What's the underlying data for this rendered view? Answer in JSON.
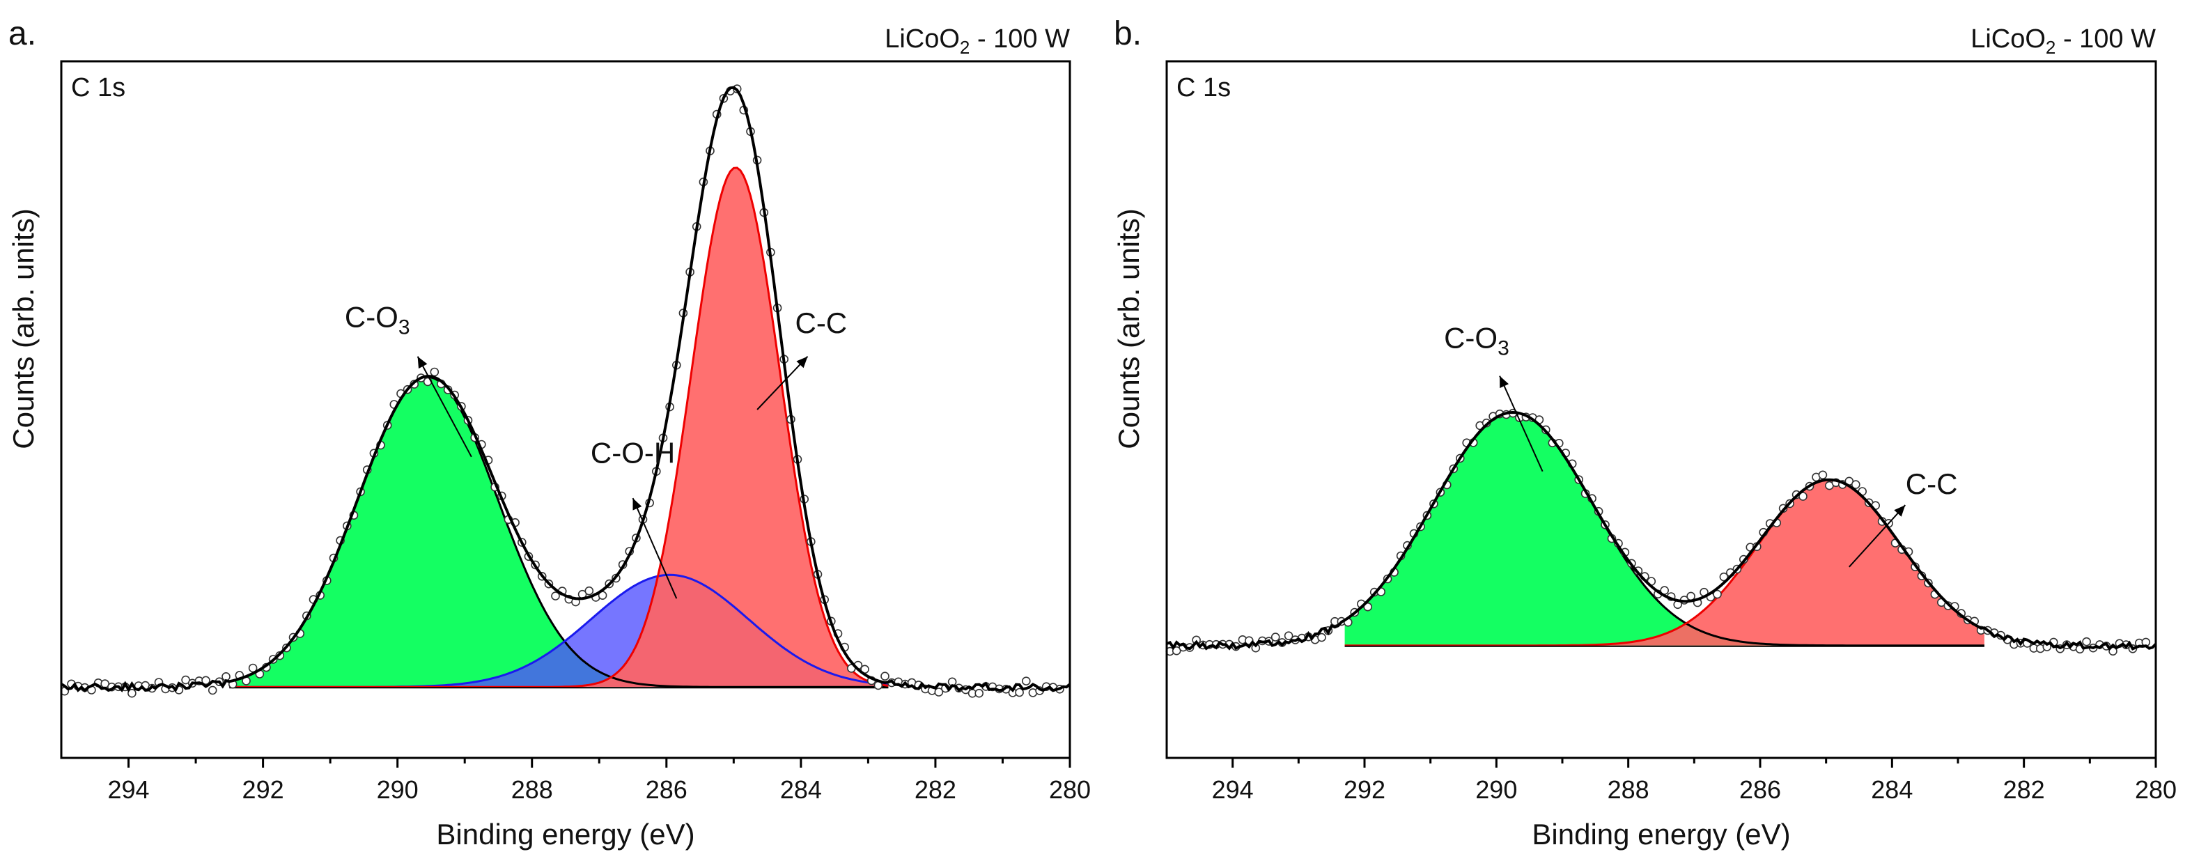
{
  "chart_data": [
    {
      "type": "line",
      "panel_label": "a.",
      "sample_label_parts": [
        "LiCoO",
        "2",
        " - 100 W"
      ],
      "region": "C 1s",
      "xlabel": "Binding energy (eV)",
      "ylabel": "Counts (arb. units)",
      "xlim": [
        295,
        280
      ],
      "x_reversed": true,
      "xticks": [
        294,
        292,
        290,
        288,
        286,
        284,
        282,
        280
      ],
      "ylim": [
        -0.12,
        1.06
      ],
      "baseline_level": 0.0,
      "measured_range": [
        295,
        280
      ],
      "fit_range": [
        292.5,
        282.7
      ],
      "components": [
        {
          "name": "C-O3",
          "label_parts": [
            "C-O",
            "3"
          ],
          "center": 289.55,
          "amplitude": 0.525,
          "fwhm": 2.45,
          "color": "#00ff55",
          "edge": "#000000",
          "label_at": [
            290.3,
            0.61
          ],
          "arrow_from": [
            288.9,
            0.39
          ],
          "arrow_to": [
            289.7,
            0.56
          ]
        },
        {
          "name": "C-O-H",
          "label_parts": [
            "C-O-H",
            ""
          ],
          "center": 285.95,
          "amplitude": 0.19,
          "fwhm": 2.75,
          "color": "#5050ff",
          "edge": "#1a1aee",
          "label_at": [
            286.5,
            0.38
          ],
          "arrow_from": [
            285.85,
            0.15
          ],
          "arrow_to": [
            286.5,
            0.32
          ]
        },
        {
          "name": "C-C",
          "label_parts": [
            "C-C",
            ""
          ],
          "center": 284.97,
          "amplitude": 0.88,
          "fwhm": 1.55,
          "color": "#ff6464",
          "edge": "#ee0000",
          "label_at": [
            283.7,
            0.6
          ],
          "arrow_from": [
            284.65,
            0.47
          ],
          "arrow_to": [
            283.9,
            0.56
          ]
        }
      ]
    },
    {
      "type": "line",
      "panel_label": "b.",
      "sample_label_parts": [
        "LiCoO",
        "2",
        " - 100 W"
      ],
      "region": "C 1s",
      "xlabel": "Binding energy (eV)",
      "ylabel": "Counts (arb. units)",
      "xlim": [
        295,
        280
      ],
      "x_reversed": true,
      "xticks": [
        294,
        292,
        290,
        288,
        286,
        284,
        282,
        280
      ],
      "ylim": [
        -0.18,
        1.06
      ],
      "baseline_level": 0.02,
      "measured_range": [
        295,
        280
      ],
      "fit_range": [
        292.3,
        282.6
      ],
      "components": [
        {
          "name": "C-O3",
          "label_parts": [
            "C-O",
            "3"
          ],
          "center": 289.75,
          "amplitude": 0.415,
          "fwhm": 2.85,
          "color": "#00ff55",
          "edge": "#000000",
          "label_at": [
            290.3,
            0.55
          ],
          "arrow_from": [
            289.3,
            0.33
          ],
          "arrow_to": [
            289.95,
            0.5
          ]
        },
        {
          "name": "C-C",
          "label_parts": [
            "C-C",
            ""
          ],
          "center": 284.95,
          "amplitude": 0.295,
          "fwhm": 2.55,
          "color": "#ff6464",
          "edge": "#ee0000",
          "label_at": [
            283.4,
            0.29
          ],
          "arrow_from": [
            284.65,
            0.16
          ],
          "arrow_to": [
            283.8,
            0.27
          ]
        }
      ]
    }
  ]
}
